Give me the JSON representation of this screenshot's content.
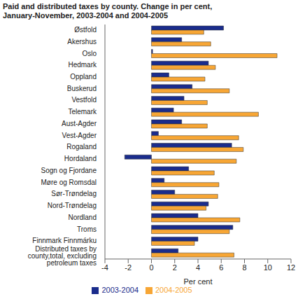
{
  "chart_data": {
    "type": "bar",
    "orientation": "horizontal",
    "title": "Paid and distributed taxes by county. Change in per cent, January-November, 2003-2004 and 2004-2005",
    "xlabel": "Per cent",
    "categories": [
      "Østfold",
      "Akershus",
      "Oslo",
      "Hedmark",
      "Oppland",
      "Buskerud",
      "Vestfold",
      "Telemark",
      "Aust-Agder",
      "Vest-Agder",
      "Rogaland",
      "Hordaland",
      "Sogn og Fjordane",
      "Møre og Romsdal",
      "Sør-Trøndelag",
      "Nord-Trøndelag",
      "Nordland",
      "Troms",
      "Finnmark Finnmárku",
      "Distributed taxes by county,total, excluding petroleum taxes"
    ],
    "series": [
      {
        "name": "2003-2004",
        "color": "#1a2c8c",
        "values": [
          6.2,
          2.6,
          0.1,
          4.9,
          1.5,
          3.5,
          2.8,
          1.9,
          2.6,
          0.6,
          6.9,
          -2.3,
          3.2,
          1.1,
          2.0,
          4.9,
          4.0,
          7.0,
          4.0,
          2.3
        ]
      },
      {
        "name": "2004-2005",
        "color": "#f7a635",
        "values": [
          4.5,
          5.1,
          10.8,
          5.5,
          4.6,
          6.7,
          4.8,
          9.2,
          4.8,
          7.5,
          7.9,
          7.3,
          5.4,
          5.8,
          5.7,
          4.7,
          7.6,
          6.7,
          3.7,
          7.1
        ]
      }
    ],
    "xlim": [
      -4,
      12
    ],
    "xticks": [
      -4,
      -2,
      0,
      2,
      4,
      6,
      8,
      10,
      12
    ],
    "grid": false,
    "legend": "bottom"
  }
}
